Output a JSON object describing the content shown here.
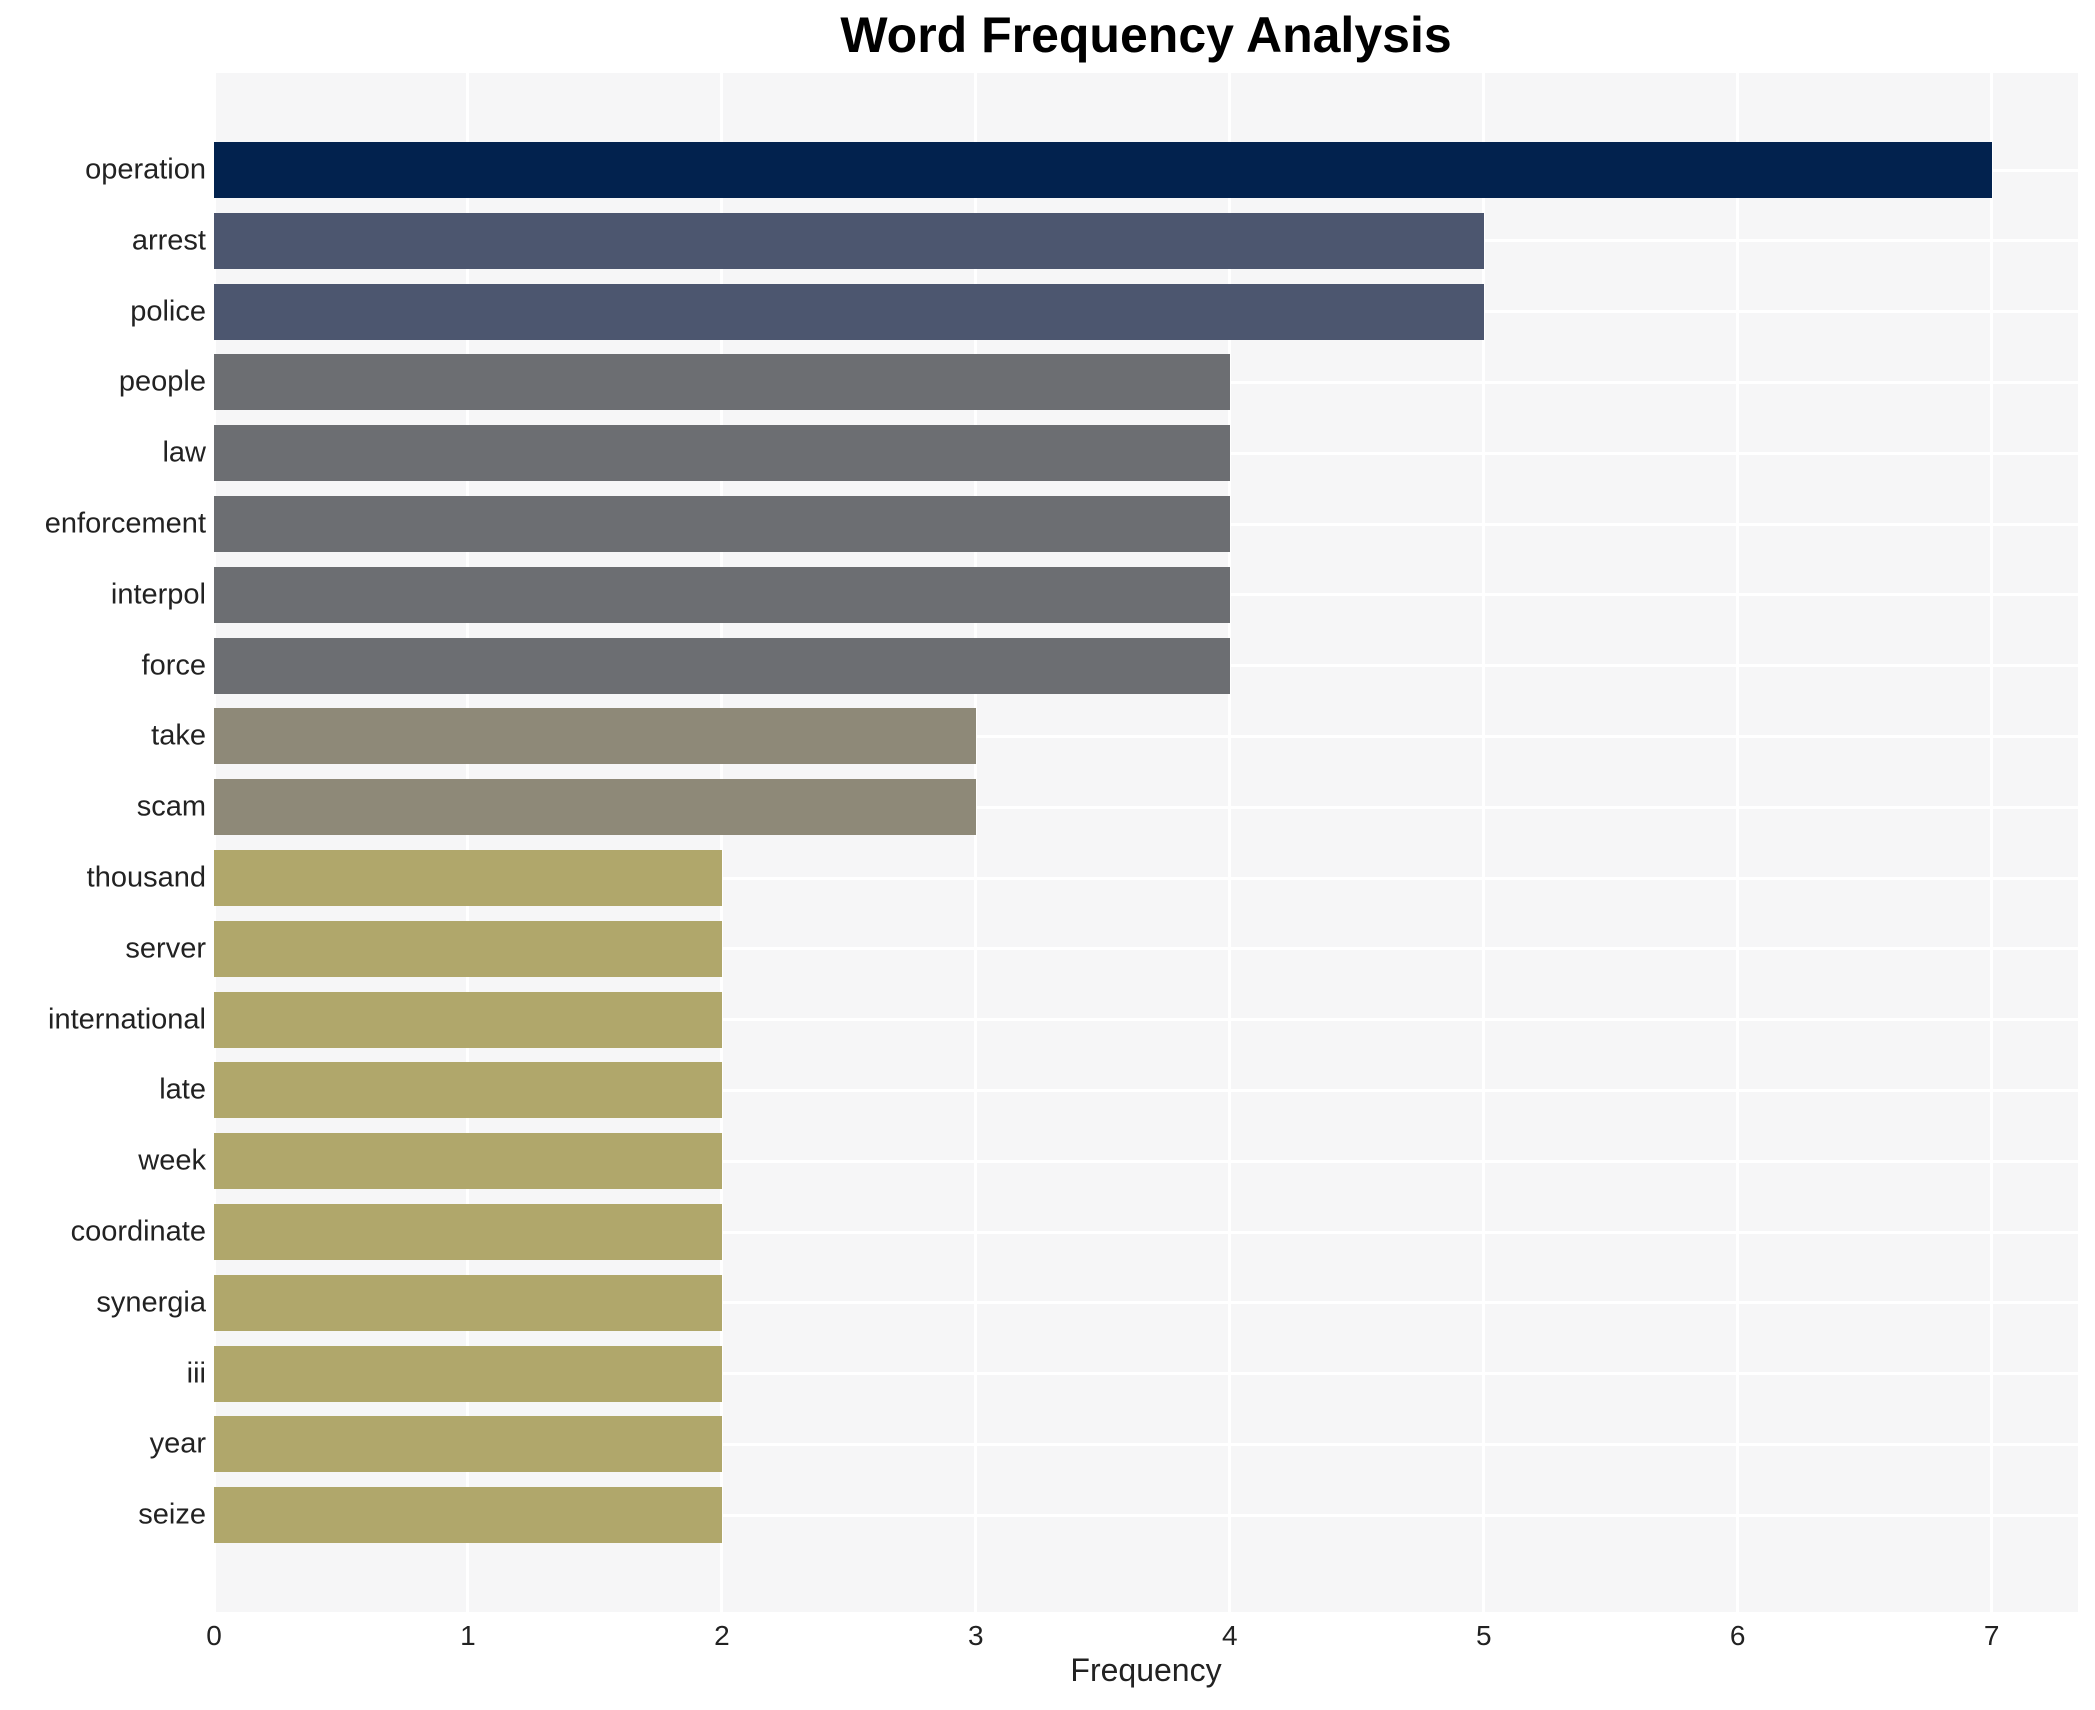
{
  "chart_data": {
    "type": "bar",
    "orientation": "horizontal",
    "title": "Word Frequency Analysis",
    "xlabel": "Frequency",
    "ylabel": "",
    "categories": [
      "operation",
      "arrest",
      "police",
      "people",
      "law",
      "enforcement",
      "interpol",
      "force",
      "take",
      "scam",
      "thousand",
      "server",
      "international",
      "late",
      "week",
      "coordinate",
      "synergia",
      "iii",
      "year",
      "seize"
    ],
    "values": [
      7,
      5,
      5,
      4,
      4,
      4,
      4,
      4,
      3,
      3,
      2,
      2,
      2,
      2,
      2,
      2,
      2,
      2,
      2,
      2
    ],
    "bar_colors": [
      "#02224e",
      "#4c566f",
      "#4c566f",
      "#6c6e72",
      "#6c6e72",
      "#6c6e72",
      "#6c6e72",
      "#6c6e72",
      "#8e8978",
      "#8e8978",
      "#b0a76b",
      "#b0a76b",
      "#b0a76b",
      "#b0a76b",
      "#b0a76b",
      "#b0a76b",
      "#b0a76b",
      "#b0a76b",
      "#b0a76b",
      "#b0a76b"
    ],
    "x_ticks": [
      0,
      1,
      2,
      3,
      4,
      5,
      6,
      7
    ],
    "xlim": [
      0,
      7.34
    ],
    "grid": true,
    "legend_visible": false,
    "plot_bg_color": "#f6f6f7",
    "grid_color": "#ffffff",
    "text_color": "#222222",
    "title_color": "#000000"
  }
}
